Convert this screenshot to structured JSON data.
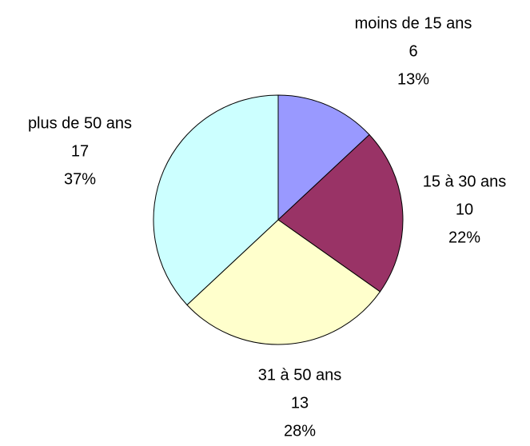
{
  "chart_data": {
    "type": "pie",
    "categories": [
      "moins de 15 ans",
      "15 à 30 ans",
      "31 à 50 ans",
      "plus de 50 ans"
    ],
    "values": [
      6,
      10,
      13,
      17
    ],
    "percent_labels": [
      "13%",
      "22%",
      "28%",
      "37%"
    ],
    "colors": [
      "#9999ff",
      "#993366",
      "#ffffcc",
      "#ccffff"
    ]
  }
}
